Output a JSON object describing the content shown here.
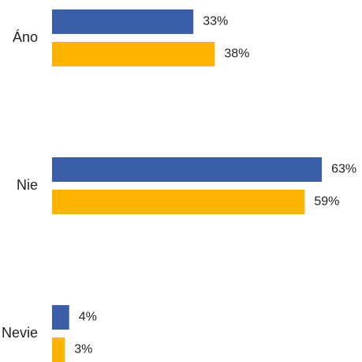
{
  "chart_data": {
    "type": "bar",
    "orientation": "horizontal",
    "categories": [
      "Áno",
      "Nie",
      "Nevie"
    ],
    "series": [
      {
        "color": "#3a5ea8",
        "values": [
          33,
          63,
          4
        ],
        "value_labels": [
          "33%",
          "63%",
          "4%"
        ]
      },
      {
        "color": "#ffb400",
        "values": [
          38,
          59,
          3
        ],
        "value_labels": [
          "38%",
          "59%",
          "3%"
        ]
      }
    ]
  }
}
